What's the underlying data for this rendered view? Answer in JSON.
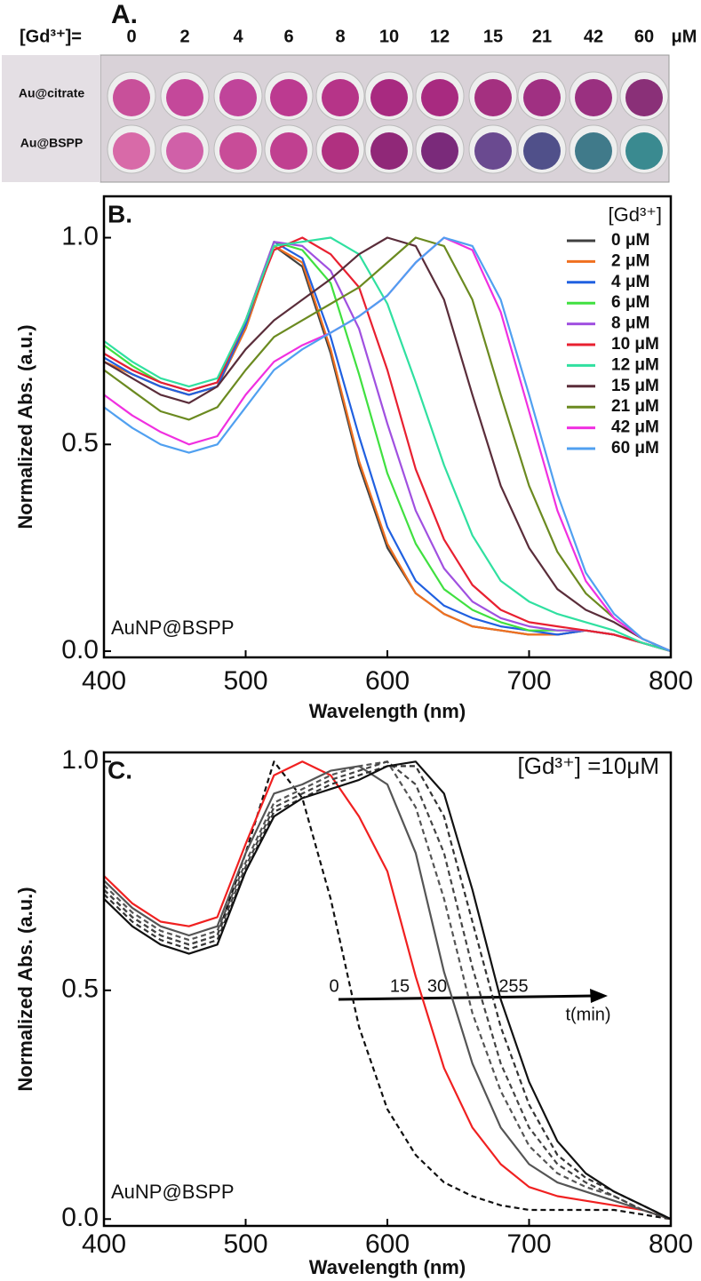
{
  "panel_a": {
    "label": "A.",
    "header": "[Gd³⁺]=",
    "concentrations": [
      "0",
      "2",
      "4",
      "6",
      "8",
      "10",
      "12",
      "15",
      "21",
      "42",
      "60"
    ],
    "unit": "μM",
    "rows": [
      "Au@citrate",
      "Au@BSPP"
    ]
  },
  "chart_data": [
    {
      "type": "line",
      "panel_label": "B.",
      "sample_label": "AuNP@BSPP",
      "x_label": "Wavelength (nm)",
      "y_label": "Normalized Abs. (a.u.)",
      "legend_title": "[Gd³⁺]",
      "legend": "upper right",
      "x": [
        400,
        420,
        440,
        460,
        480,
        500,
        520,
        540,
        560,
        580,
        600,
        620,
        640,
        660,
        680,
        700,
        720,
        740,
        760,
        780,
        800
      ],
      "xlim": [
        400,
        800
      ],
      "xticks": [
        400,
        500,
        600,
        700,
        800
      ],
      "ylim": [
        -0.015,
        1.1
      ],
      "yticks": [
        {
          "value": 0,
          "label": "0.0"
        },
        {
          "value": 0.5,
          "label": "0.5"
        },
        {
          "value": 1,
          "label": "1.0"
        }
      ],
      "series": [
        {
          "name": "0 μM",
          "color": "#404040",
          "values": [
            0.7,
            0.67,
            0.64,
            0.62,
            0.64,
            0.78,
            0.98,
            0.93,
            0.72,
            0.45,
            0.25,
            0.14,
            0.09,
            0.06,
            0.05,
            0.04,
            0.04,
            0.05,
            0.04,
            0.02,
            0.0
          ]
        },
        {
          "name": "2 μM",
          "color": "#f07020",
          "values": [
            0.7,
            0.67,
            0.64,
            0.62,
            0.64,
            0.78,
            0.98,
            0.94,
            0.73,
            0.46,
            0.26,
            0.14,
            0.09,
            0.06,
            0.05,
            0.04,
            0.04,
            0.05,
            0.04,
            0.02,
            0.0
          ]
        },
        {
          "name": "4 μM",
          "color": "#2060e0",
          "values": [
            0.71,
            0.67,
            0.64,
            0.62,
            0.64,
            0.79,
            0.99,
            0.95,
            0.76,
            0.52,
            0.3,
            0.17,
            0.11,
            0.08,
            0.06,
            0.05,
            0.04,
            0.05,
            0.04,
            0.02,
            0.0
          ]
        },
        {
          "name": "6 μM",
          "color": "#40e040",
          "values": [
            0.74,
            0.69,
            0.65,
            0.63,
            0.65,
            0.8,
            0.99,
            0.97,
            0.89,
            0.67,
            0.43,
            0.26,
            0.15,
            0.1,
            0.07,
            0.05,
            0.05,
            0.05,
            0.04,
            0.02,
            0.0
          ]
        },
        {
          "name": "8 μM",
          "color": "#a050e0",
          "values": [
            0.72,
            0.68,
            0.65,
            0.63,
            0.65,
            0.8,
            0.99,
            0.98,
            0.92,
            0.78,
            0.55,
            0.34,
            0.2,
            0.12,
            0.08,
            0.06,
            0.05,
            0.05,
            0.04,
            0.02,
            0.0
          ]
        },
        {
          "name": "10 μM",
          "color": "#e82030",
          "values": [
            0.72,
            0.68,
            0.65,
            0.63,
            0.65,
            0.8,
            0.97,
            1.0,
            0.96,
            0.88,
            0.68,
            0.44,
            0.27,
            0.16,
            0.1,
            0.07,
            0.06,
            0.05,
            0.04,
            0.02,
            0.0
          ]
        },
        {
          "name": "12 μM",
          "color": "#30e0a0",
          "values": [
            0.75,
            0.7,
            0.66,
            0.64,
            0.66,
            0.8,
            0.98,
            0.99,
            1.0,
            0.96,
            0.84,
            0.65,
            0.45,
            0.28,
            0.17,
            0.12,
            0.09,
            0.07,
            0.05,
            0.02,
            0.0
          ]
        },
        {
          "name": "15 μM",
          "color": "#5a2d3a",
          "values": [
            0.7,
            0.66,
            0.62,
            0.6,
            0.64,
            0.73,
            0.8,
            0.85,
            0.9,
            0.96,
            1.0,
            0.98,
            0.85,
            0.62,
            0.4,
            0.25,
            0.15,
            0.1,
            0.07,
            0.03,
            0.0
          ]
        },
        {
          "name": "21 μM",
          "color": "#6b8a20",
          "values": [
            0.68,
            0.63,
            0.58,
            0.56,
            0.59,
            0.68,
            0.76,
            0.8,
            0.84,
            0.88,
            0.94,
            1.0,
            0.98,
            0.85,
            0.62,
            0.4,
            0.24,
            0.14,
            0.08,
            0.03,
            0.0
          ]
        },
        {
          "name": "42 μM",
          "color": "#f030e0",
          "values": [
            0.62,
            0.57,
            0.53,
            0.5,
            0.52,
            0.62,
            0.7,
            0.74,
            0.77,
            0.81,
            0.86,
            0.94,
            1.0,
            0.97,
            0.82,
            0.58,
            0.34,
            0.17,
            0.08,
            0.03,
            0.0
          ]
        },
        {
          "name": "60 μM",
          "color": "#50a0f0",
          "values": [
            0.59,
            0.54,
            0.5,
            0.48,
            0.5,
            0.59,
            0.68,
            0.73,
            0.77,
            0.81,
            0.86,
            0.94,
            1.0,
            0.98,
            0.85,
            0.62,
            0.38,
            0.19,
            0.09,
            0.03,
            0.0
          ]
        }
      ]
    },
    {
      "type": "line",
      "panel_label": "C.",
      "sample_label": "AuNP@BSPP",
      "x_label": "Wavelength (nm)",
      "y_label": "Normalized Abs. (a.u.)",
      "condition": "[Gd³⁺] =10μM",
      "time_labels": [
        "0",
        "15",
        "30",
        "255"
      ],
      "time_axis_label": "t(min)",
      "x": [
        400,
        420,
        440,
        460,
        480,
        500,
        520,
        540,
        560,
        580,
        600,
        620,
        640,
        660,
        680,
        700,
        720,
        740,
        760,
        780,
        800
      ],
      "xlim": [
        400,
        800
      ],
      "xticks": [
        400,
        500,
        600,
        700,
        800
      ],
      "ylim": [
        -0.015,
        1.02
      ],
      "yticks": [
        {
          "value": 0,
          "label": "0.0"
        },
        {
          "value": 0.5,
          "label": "0.5"
        },
        {
          "value": 1,
          "label": "1.0"
        }
      ],
      "series": [
        {
          "color": "#111111",
          "linestyle": "dashed",
          "values": [
            0.72,
            0.66,
            0.62,
            0.6,
            0.62,
            0.8,
            1.0,
            0.92,
            0.7,
            0.42,
            0.24,
            0.14,
            0.08,
            0.05,
            0.03,
            0.02,
            0.02,
            0.02,
            0.02,
            0.01,
            0.0
          ]
        },
        {
          "color": "#f02020",
          "linestyle": "solid",
          "values": [
            0.75,
            0.69,
            0.65,
            0.64,
            0.66,
            0.82,
            0.97,
            1.0,
            0.97,
            0.88,
            0.76,
            0.53,
            0.33,
            0.2,
            0.12,
            0.07,
            0.05,
            0.04,
            0.03,
            0.02,
            0.0
          ]
        },
        {
          "color": "#555555",
          "linestyle": "solid",
          "values": [
            0.74,
            0.68,
            0.64,
            0.62,
            0.64,
            0.8,
            0.93,
            0.95,
            0.98,
            0.99,
            0.95,
            0.8,
            0.54,
            0.34,
            0.2,
            0.12,
            0.08,
            0.06,
            0.04,
            0.02,
            0.0
          ]
        },
        {
          "color": "#555555",
          "linestyle": "dashed",
          "values": [
            0.73,
            0.67,
            0.63,
            0.61,
            0.63,
            0.78,
            0.91,
            0.94,
            0.97,
            0.99,
            1.0,
            0.9,
            0.7,
            0.45,
            0.28,
            0.16,
            0.1,
            0.07,
            0.05,
            0.02,
            0.0
          ]
        },
        {
          "color": "#444444",
          "linestyle": "dashed",
          "values": [
            0.72,
            0.66,
            0.62,
            0.6,
            0.62,
            0.77,
            0.9,
            0.93,
            0.96,
            0.98,
            1.0,
            0.95,
            0.8,
            0.55,
            0.34,
            0.2,
            0.12,
            0.08,
            0.05,
            0.02,
            0.0
          ]
        },
        {
          "color": "#333333",
          "linestyle": "dashed",
          "values": [
            0.71,
            0.65,
            0.61,
            0.59,
            0.61,
            0.76,
            0.89,
            0.92,
            0.95,
            0.97,
            0.99,
            0.99,
            0.88,
            0.65,
            0.42,
            0.25,
            0.14,
            0.09,
            0.06,
            0.03,
            0.0
          ]
        },
        {
          "color": "#111111",
          "linestyle": "solid",
          "values": [
            0.7,
            0.64,
            0.6,
            0.58,
            0.6,
            0.76,
            0.88,
            0.92,
            0.94,
            0.96,
            0.99,
            1.0,
            0.93,
            0.72,
            0.48,
            0.3,
            0.17,
            0.1,
            0.06,
            0.03,
            0.0
          ]
        }
      ]
    }
  ]
}
